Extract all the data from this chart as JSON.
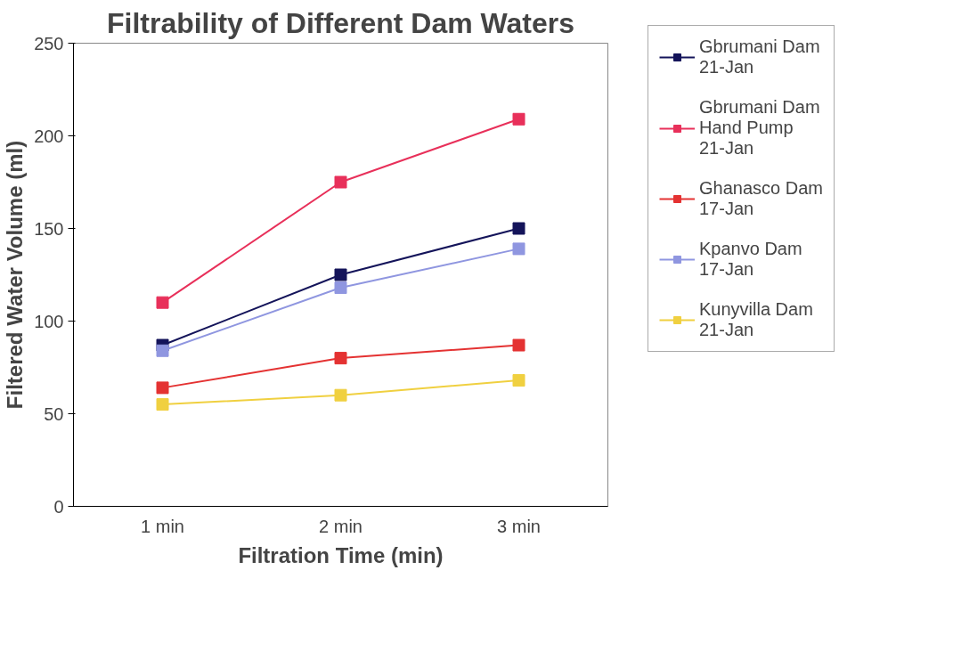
{
  "chart_data": {
    "type": "line",
    "title": "Filtrability of Different Dam Waters",
    "xlabel": "Filtration Time (min)",
    "ylabel": "Filtered Water Volume (ml)",
    "categories": [
      "1 min",
      "2 min",
      "3 min"
    ],
    "series": [
      {
        "name": "Gbrumani Dam 21-Jan",
        "color": "#14145a",
        "values": [
          87,
          125,
          150
        ]
      },
      {
        "name": "Gbrumani Dam Hand Pump 21-Jan",
        "color": "#e8305a",
        "values": [
          110,
          175,
          209
        ]
      },
      {
        "name": "Ghanasco Dam 17-Jan",
        "color": "#e43232",
        "values": [
          64,
          80,
          87
        ]
      },
      {
        "name": "Kpanvo Dam 17-Jan",
        "color": "#8f96e0",
        "values": [
          84,
          118,
          139
        ]
      },
      {
        "name": "Kunyvilla Dam 21-Jan",
        "color": "#f0d040",
        "values": [
          55,
          60,
          68
        ]
      }
    ],
    "ylim": [
      0,
      250
    ],
    "yticks": [
      0,
      50,
      100,
      150,
      200,
      250
    ],
    "grid": false,
    "legend": "right",
    "marker": "square",
    "line_style": "solid"
  }
}
